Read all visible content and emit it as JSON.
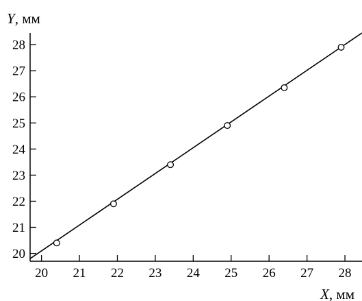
{
  "chart_data": {
    "type": "scatter",
    "xlabel": {
      "var": "X",
      "unit": ", мм"
    },
    "ylabel": {
      "var": "Y",
      "unit": ", мм"
    },
    "xlim": [
      19.7,
      28.45
    ],
    "ylim": [
      19.7,
      28.45
    ],
    "x_ticks": [
      20,
      21,
      22,
      23,
      24,
      25,
      26,
      27,
      28
    ],
    "y_ticks": [
      20,
      21,
      22,
      23,
      24,
      25,
      26,
      27,
      28
    ],
    "grid": false,
    "series": [
      {
        "marker": "open-circle",
        "x": [
          20.4,
          21.9,
          23.4,
          24.9,
          26.4,
          27.9
        ],
        "y": [
          20.4,
          21.9,
          23.4,
          24.9,
          26.35,
          27.9
        ]
      }
    ],
    "fit_line": {
      "x": [
        19.7,
        28.45
      ],
      "y": [
        19.8,
        28.45
      ]
    }
  }
}
